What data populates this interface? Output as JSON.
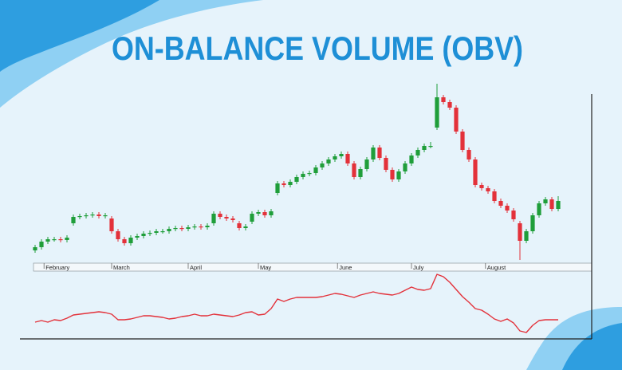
{
  "chart_data": [
    {
      "type": "candlestick",
      "title": "ON-BALANCE VOLUME (OBV)",
      "xlim": [
        -0.5,
        82.5
      ],
      "xticks": [
        {
          "value": 1.4,
          "label": "February"
        },
        {
          "value": 12,
          "label": "March"
        },
        {
          "value": 24,
          "label": "April"
        },
        {
          "value": 35,
          "label": "May"
        },
        {
          "value": 47.4,
          "label": "June"
        },
        {
          "value": 59,
          "label": "July"
        },
        {
          "value": 70.6,
          "label": "August"
        }
      ],
      "ylim": [
        0,
        230
      ],
      "up_color": "#1f9e3a",
      "down_color": "#e3313a",
      "open": [
        16,
        20,
        27,
        30,
        30,
        29,
        50,
        58,
        59,
        60,
        61,
        59,
        56,
        40,
        30,
        25,
        32,
        34,
        37,
        38,
        40,
        40,
        43,
        44,
        43,
        45,
        46,
        45,
        50,
        62,
        58,
        56,
        50,
        44,
        52,
        62,
        64,
        60,
        88,
        100,
        98,
        102,
        108,
        112,
        113,
        120,
        125,
        130,
        134,
        137,
        125,
        108,
        118,
        130,
        145,
        132,
        117,
        105,
        115,
        125,
        135,
        142,
        147,
        170,
        208,
        202,
        195,
        165,
        142,
        130,
        98,
        94,
        90,
        78,
        72,
        66,
        50,
        28,
        40,
        60,
        75,
        80,
        68
      ],
      "high": [
        23,
        30,
        33,
        33,
        33,
        35,
        61,
        62,
        63,
        64,
        64,
        63,
        59,
        43,
        33,
        35,
        37,
        40,
        41,
        43,
        43,
        46,
        47,
        47,
        48,
        49,
        49,
        50,
        65,
        65,
        61,
        59,
        53,
        49,
        65,
        67,
        67,
        68,
        103,
        103,
        105,
        111,
        115,
        116,
        123,
        128,
        133,
        137,
        140,
        140,
        128,
        121,
        133,
        148,
        148,
        135,
        120,
        118,
        128,
        138,
        145,
        150,
        152,
        225,
        211,
        205,
        198,
        168,
        145,
        133,
        101,
        97,
        93,
        81,
        75,
        69,
        53,
        43,
        63,
        78,
        83,
        83,
        84
      ],
      "low": [
        13,
        17,
        24,
        27,
        26,
        26,
        47,
        55,
        56,
        57,
        56,
        56,
        37,
        27,
        22,
        22,
        29,
        31,
        34,
        35,
        37,
        37,
        40,
        40,
        40,
        42,
        42,
        42,
        47,
        55,
        53,
        51,
        41,
        41,
        49,
        59,
        57,
        57,
        85,
        95,
        95,
        99,
        105,
        109,
        110,
        117,
        122,
        127,
        131,
        122,
        105,
        105,
        115,
        127,
        129,
        114,
        102,
        102,
        112,
        122,
        132,
        139,
        144,
        167,
        199,
        192,
        162,
        139,
        127,
        95,
        91,
        87,
        75,
        69,
        63,
        52,
        4,
        25,
        37,
        57,
        72,
        65,
        65
      ],
      "close": [
        20,
        27,
        30,
        30,
        29,
        32,
        58,
        59,
        60,
        61,
        59,
        60,
        40,
        30,
        25,
        32,
        34,
        37,
        38,
        40,
        40,
        43,
        44,
        43,
        45,
        46,
        45,
        47,
        62,
        58,
        56,
        54,
        44,
        46,
        62,
        64,
        60,
        65,
        100,
        98,
        102,
        108,
        112,
        113,
        120,
        125,
        130,
        134,
        137,
        125,
        108,
        118,
        130,
        145,
        132,
        117,
        105,
        115,
        125,
        135,
        142,
        147,
        147,
        208,
        202,
        195,
        165,
        142,
        130,
        98,
        94,
        90,
        78,
        72,
        66,
        55,
        28,
        40,
        60,
        75,
        80,
        68,
        78
      ]
    },
    {
      "type": "line",
      "color": "#e3313a",
      "ylim": [
        0,
        80
      ],
      "values": [
        18,
        20,
        18,
        21,
        20,
        23,
        27,
        28,
        29,
        30,
        31,
        30,
        28,
        21,
        21,
        22,
        24,
        26,
        26,
        25,
        24,
        22,
        23,
        25,
        26,
        28,
        26,
        26,
        28,
        27,
        26,
        25,
        27,
        30,
        31,
        27,
        28,
        35,
        47,
        44,
        47,
        49,
        49,
        49,
        49,
        50,
        52,
        54,
        53,
        51,
        49,
        52,
        54,
        56,
        54,
        53,
        52,
        54,
        58,
        62,
        59,
        58,
        60,
        78,
        75,
        68,
        59,
        50,
        43,
        35,
        33,
        28,
        22,
        19,
        22,
        17,
        7,
        5,
        14,
        20,
        21,
        21,
        21
      ]
    }
  ]
}
